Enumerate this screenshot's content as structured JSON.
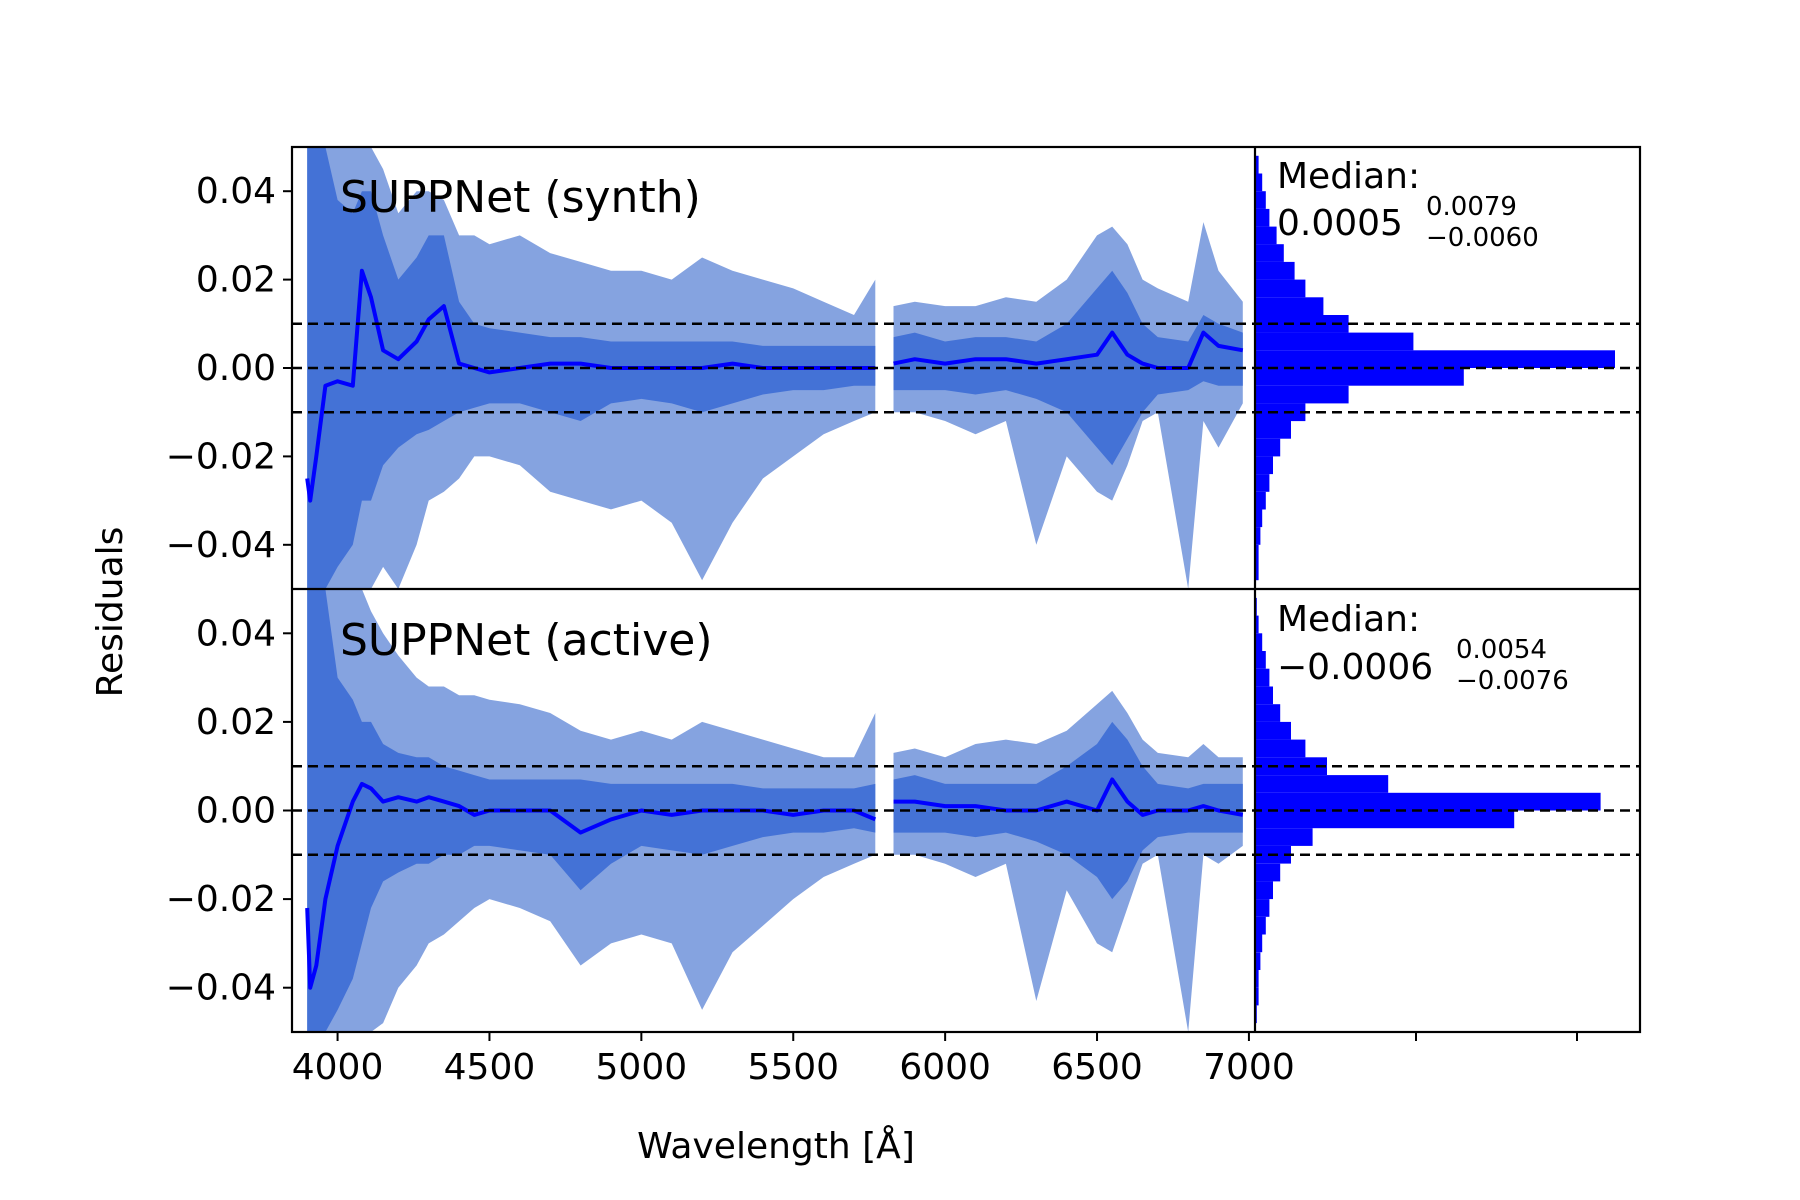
{
  "chart_data": {
    "type": "line",
    "shared": {
      "xlabel": "Wavelength [Å]",
      "ylabel": "Residuals",
      "xlim": [
        3850,
        7020
      ],
      "ylim": [
        -0.05,
        0.05
      ],
      "x_ticks": [
        4000,
        4500,
        5000,
        5500,
        6000,
        6500,
        7000
      ],
      "x_tick_labels": [
        "4000",
        "4500",
        "5000",
        "5500",
        "6000",
        "6500",
        "7000"
      ],
      "y_ticks": [
        0.04,
        0.02,
        0.0,
        -0.02,
        -0.04
      ],
      "y_tick_labels": [
        "0.04",
        "0.02",
        "0.00",
        "−0.02",
        "−0.04"
      ],
      "reference_lines": [
        0.01,
        0.0,
        -0.01
      ],
      "colors": {
        "median_line": "#0000ff",
        "inner_band": "#4472d6",
        "outer_band": "#85a3e0",
        "histogram": "#0000ff",
        "reference": "#000000"
      }
    },
    "panels": [
      {
        "title": "SUPPNet (synth)",
        "median_label": "Median:",
        "median_value": "0.0005",
        "median_upper": "0.0079",
        "median_lower": "−0.0060",
        "x": [
          3900,
          3910,
          3930,
          3960,
          4000,
          4050,
          4080,
          4110,
          4150,
          4200,
          4260,
          4300,
          4350,
          4400,
          4450,
          4500,
          4600,
          4700,
          4800,
          4900,
          5000,
          5100,
          5200,
          5300,
          5400,
          5500,
          5600,
          5700,
          5770,
          5830,
          5900,
          6000,
          6100,
          6200,
          6300,
          6400,
          6500,
          6550,
          6600,
          6650,
          6700,
          6800,
          6850,
          6900,
          6980
        ],
        "median": [
          -0.025,
          -0.03,
          -0.02,
          -0.004,
          -0.003,
          -0.004,
          0.022,
          0.016,
          0.004,
          0.002,
          0.006,
          0.011,
          0.014,
          0.001,
          0.0,
          -0.001,
          0.0,
          0.001,
          0.001,
          0.0,
          0.0,
          0.0,
          0.0,
          0.001,
          0.0,
          0.0,
          0.0,
          0.0,
          0.0,
          0.001,
          0.002,
          0.001,
          0.002,
          0.002,
          0.001,
          0.002,
          0.003,
          0.008,
          0.003,
          0.001,
          0.0,
          0.0,
          0.008,
          0.005,
          0.004
        ],
        "inner_band_upper": [
          0.05,
          0.05,
          0.05,
          0.05,
          0.038,
          0.035,
          0.04,
          0.04,
          0.03,
          0.02,
          0.025,
          0.03,
          0.03,
          0.015,
          0.01,
          0.009,
          0.008,
          0.007,
          0.007,
          0.006,
          0.006,
          0.006,
          0.006,
          0.006,
          0.005,
          0.005,
          0.005,
          0.005,
          0.005,
          0.007,
          0.008,
          0.006,
          0.007,
          0.007,
          0.006,
          0.01,
          0.018,
          0.022,
          0.017,
          0.01,
          0.007,
          0.006,
          0.012,
          0.01,
          0.008
        ],
        "inner_band_lower": [
          -0.05,
          -0.05,
          -0.05,
          -0.05,
          -0.045,
          -0.04,
          -0.03,
          -0.03,
          -0.022,
          -0.018,
          -0.015,
          -0.014,
          -0.012,
          -0.01,
          -0.009,
          -0.008,
          -0.008,
          -0.01,
          -0.012,
          -0.008,
          -0.007,
          -0.008,
          -0.01,
          -0.008,
          -0.006,
          -0.005,
          -0.005,
          -0.004,
          -0.004,
          -0.005,
          -0.005,
          -0.005,
          -0.006,
          -0.005,
          -0.007,
          -0.01,
          -0.018,
          -0.022,
          -0.016,
          -0.01,
          -0.006,
          -0.005,
          -0.003,
          -0.004,
          -0.004
        ],
        "outer_band_upper": [
          0.05,
          0.05,
          0.05,
          0.05,
          0.05,
          0.05,
          0.05,
          0.05,
          0.045,
          0.035,
          0.04,
          0.04,
          0.038,
          0.03,
          0.03,
          0.028,
          0.03,
          0.026,
          0.024,
          0.022,
          0.022,
          0.02,
          0.025,
          0.022,
          0.02,
          0.018,
          0.015,
          0.012,
          0.02,
          0.014,
          0.015,
          0.014,
          0.014,
          0.016,
          0.015,
          0.02,
          0.03,
          0.032,
          0.028,
          0.02,
          0.018,
          0.015,
          0.033,
          0.022,
          0.015
        ],
        "outer_band_lower": [
          -0.05,
          -0.05,
          -0.05,
          -0.05,
          -0.05,
          -0.05,
          -0.05,
          -0.05,
          -0.045,
          -0.05,
          -0.04,
          -0.03,
          -0.028,
          -0.025,
          -0.02,
          -0.02,
          -0.022,
          -0.028,
          -0.03,
          -0.032,
          -0.03,
          -0.035,
          -0.048,
          -0.035,
          -0.025,
          -0.02,
          -0.015,
          -0.012,
          -0.01,
          -0.01,
          -0.01,
          -0.012,
          -0.015,
          -0.012,
          -0.04,
          -0.02,
          -0.028,
          -0.03,
          -0.022,
          -0.012,
          -0.01,
          -0.05,
          -0.012,
          -0.018,
          -0.008
        ],
        "histogram": {
          "bins": [
            0.046,
            0.042,
            0.038,
            0.034,
            0.03,
            0.026,
            0.022,
            0.018,
            0.014,
            0.01,
            0.006,
            0.002,
            -0.002,
            -0.006,
            -0.01,
            -0.014,
            -0.018,
            -0.022,
            -0.026,
            -0.03,
            -0.034,
            -0.038,
            -0.042,
            -0.046
          ],
          "counts": [
            0.01,
            0.02,
            0.03,
            0.04,
            0.06,
            0.08,
            0.11,
            0.14,
            0.19,
            0.26,
            0.44,
            1.0,
            0.58,
            0.26,
            0.14,
            0.1,
            0.07,
            0.05,
            0.04,
            0.03,
            0.02,
            0.015,
            0.01,
            0.01
          ]
        }
      },
      {
        "title": "SUPPNet (active)",
        "median_label": "Median:",
        "median_value": "−0.0006",
        "median_upper": "0.0054",
        "median_lower": "−0.0076",
        "x": [
          3900,
          3910,
          3930,
          3960,
          4000,
          4050,
          4080,
          4110,
          4150,
          4200,
          4260,
          4300,
          4350,
          4400,
          4450,
          4500,
          4600,
          4700,
          4800,
          4900,
          5000,
          5100,
          5200,
          5300,
          5400,
          5500,
          5600,
          5700,
          5770,
          5830,
          5900,
          6000,
          6100,
          6200,
          6300,
          6400,
          6500,
          6550,
          6600,
          6650,
          6700,
          6800,
          6850,
          6900,
          6980
        ],
        "median": [
          -0.022,
          -0.04,
          -0.035,
          -0.02,
          -0.008,
          0.002,
          0.006,
          0.005,
          0.002,
          0.003,
          0.002,
          0.003,
          0.002,
          0.001,
          -0.001,
          0.0,
          0.0,
          0.0,
          -0.005,
          -0.002,
          0.0,
          -0.001,
          0.0,
          0.0,
          0.0,
          -0.001,
          0.0,
          0.0,
          -0.002,
          0.002,
          0.002,
          0.001,
          0.001,
          0.0,
          0.0,
          0.002,
          0.0,
          0.007,
          0.002,
          -0.001,
          0.0,
          0.0,
          0.001,
          0.0,
          -0.001
        ],
        "inner_band_upper": [
          0.05,
          0.05,
          0.05,
          0.05,
          0.03,
          0.025,
          0.02,
          0.02,
          0.015,
          0.013,
          0.012,
          0.012,
          0.01,
          0.009,
          0.008,
          0.007,
          0.007,
          0.007,
          0.007,
          0.006,
          0.006,
          0.006,
          0.006,
          0.006,
          0.005,
          0.005,
          0.005,
          0.005,
          0.006,
          0.007,
          0.008,
          0.006,
          0.006,
          0.006,
          0.006,
          0.01,
          0.015,
          0.02,
          0.016,
          0.01,
          0.006,
          0.005,
          0.006,
          0.006,
          0.006
        ],
        "inner_band_lower": [
          -0.05,
          -0.05,
          -0.05,
          -0.05,
          -0.045,
          -0.038,
          -0.03,
          -0.022,
          -0.016,
          -0.014,
          -0.012,
          -0.012,
          -0.01,
          -0.01,
          -0.008,
          -0.008,
          -0.009,
          -0.01,
          -0.018,
          -0.012,
          -0.008,
          -0.009,
          -0.01,
          -0.008,
          -0.006,
          -0.005,
          -0.005,
          -0.004,
          -0.005,
          -0.005,
          -0.005,
          -0.005,
          -0.006,
          -0.005,
          -0.007,
          -0.01,
          -0.015,
          -0.02,
          -0.016,
          -0.009,
          -0.006,
          -0.005,
          -0.005,
          -0.005,
          -0.005
        ],
        "outer_band_upper": [
          0.05,
          0.05,
          0.05,
          0.05,
          0.05,
          0.05,
          0.05,
          0.045,
          0.04,
          0.035,
          0.03,
          0.028,
          0.028,
          0.026,
          0.026,
          0.025,
          0.024,
          0.022,
          0.018,
          0.016,
          0.018,
          0.016,
          0.02,
          0.018,
          0.016,
          0.014,
          0.012,
          0.012,
          0.022,
          0.013,
          0.014,
          0.012,
          0.015,
          0.016,
          0.015,
          0.018,
          0.024,
          0.027,
          0.022,
          0.016,
          0.013,
          0.012,
          0.015,
          0.012,
          0.012
        ],
        "outer_band_lower": [
          -0.05,
          -0.05,
          -0.05,
          -0.05,
          -0.05,
          -0.05,
          -0.05,
          -0.05,
          -0.048,
          -0.04,
          -0.035,
          -0.03,
          -0.028,
          -0.025,
          -0.022,
          -0.02,
          -0.022,
          -0.025,
          -0.035,
          -0.03,
          -0.028,
          -0.03,
          -0.045,
          -0.032,
          -0.026,
          -0.02,
          -0.015,
          -0.012,
          -0.01,
          -0.01,
          -0.01,
          -0.012,
          -0.015,
          -0.012,
          -0.043,
          -0.018,
          -0.03,
          -0.032,
          -0.022,
          -0.012,
          -0.01,
          -0.05,
          -0.01,
          -0.012,
          -0.008
        ],
        "histogram": {
          "bins": [
            0.046,
            0.042,
            0.038,
            0.034,
            0.03,
            0.026,
            0.022,
            0.018,
            0.014,
            0.01,
            0.006,
            0.002,
            -0.002,
            -0.006,
            -0.01,
            -0.014,
            -0.018,
            -0.022,
            -0.026,
            -0.03,
            -0.034,
            -0.038,
            -0.042,
            -0.046
          ],
          "counts": [
            0.005,
            0.01,
            0.02,
            0.03,
            0.04,
            0.05,
            0.07,
            0.1,
            0.14,
            0.2,
            0.37,
            0.96,
            0.72,
            0.16,
            0.1,
            0.07,
            0.05,
            0.04,
            0.03,
            0.02,
            0.015,
            0.01,
            0.01,
            0.005
          ]
        }
      }
    ]
  }
}
